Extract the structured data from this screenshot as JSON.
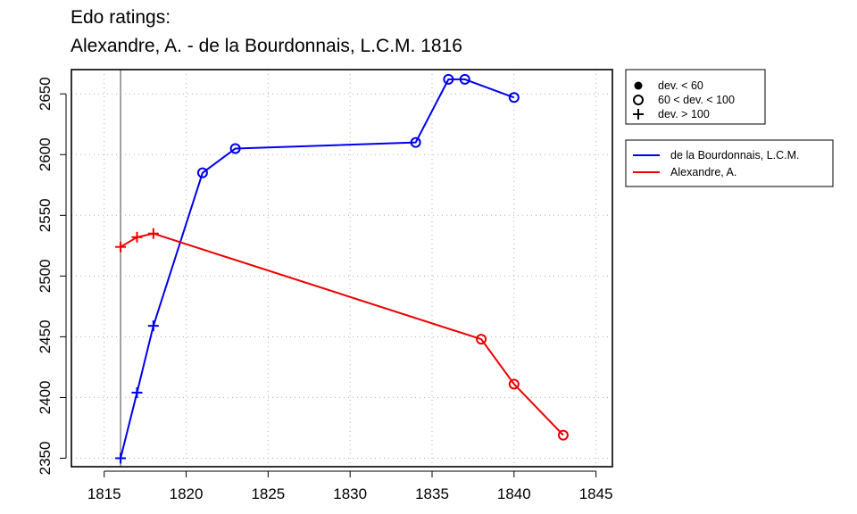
{
  "title_line1": "Edo ratings:",
  "title_line2": "Alexandre, A. - de la Bourdonnais, L.C.M. 1816",
  "chart_data": {
    "type": "line",
    "title": "Edo ratings: Alexandre, A. - de la Bourdonnais, L.C.M. 1816",
    "xlim": [
      1813,
      1846
    ],
    "ylim": [
      2343,
      2670
    ],
    "x_ticks": [
      1815,
      1820,
      1825,
      1830,
      1835,
      1840,
      1845
    ],
    "y_ticks": [
      2350,
      2400,
      2450,
      2500,
      2550,
      2600,
      2650
    ],
    "grid": true,
    "reference_x": 1816,
    "series": [
      {
        "name": "de la Bourdonnais, L.C.M.",
        "color": "#0000ee",
        "points": [
          {
            "x": 1816,
            "y": 2350,
            "marker": "plus"
          },
          {
            "x": 1817,
            "y": 2404,
            "marker": "plus"
          },
          {
            "x": 1818,
            "y": 2459,
            "marker": "plus"
          },
          {
            "x": 1821,
            "y": 2585,
            "marker": "circle"
          },
          {
            "x": 1823,
            "y": 2605,
            "marker": "circle"
          },
          {
            "x": 1834,
            "y": 2610,
            "marker": "circle"
          },
          {
            "x": 1836,
            "y": 2662,
            "marker": "circle"
          },
          {
            "x": 1837,
            "y": 2662,
            "marker": "circle"
          },
          {
            "x": 1840,
            "y": 2647,
            "marker": "circle"
          }
        ]
      },
      {
        "name": "Alexandre, A.",
        "color": "#ee0000",
        "points": [
          {
            "x": 1816,
            "y": 2524,
            "marker": "plus"
          },
          {
            "x": 1817,
            "y": 2532,
            "marker": "plus"
          },
          {
            "x": 1818,
            "y": 2535,
            "marker": "plus"
          },
          {
            "x": 1838,
            "y": 2448,
            "marker": "circle"
          },
          {
            "x": 1840,
            "y": 2411,
            "marker": "circle"
          },
          {
            "x": 1843,
            "y": 2369,
            "marker": "circle"
          }
        ]
      }
    ],
    "marker_legend": [
      {
        "symbol": "dot",
        "label": "dev. < 60"
      },
      {
        "symbol": "circle",
        "label": "60 < dev. < 100"
      },
      {
        "symbol": "plus",
        "label": "dev. > 100"
      }
    ],
    "legend_position": "right"
  }
}
